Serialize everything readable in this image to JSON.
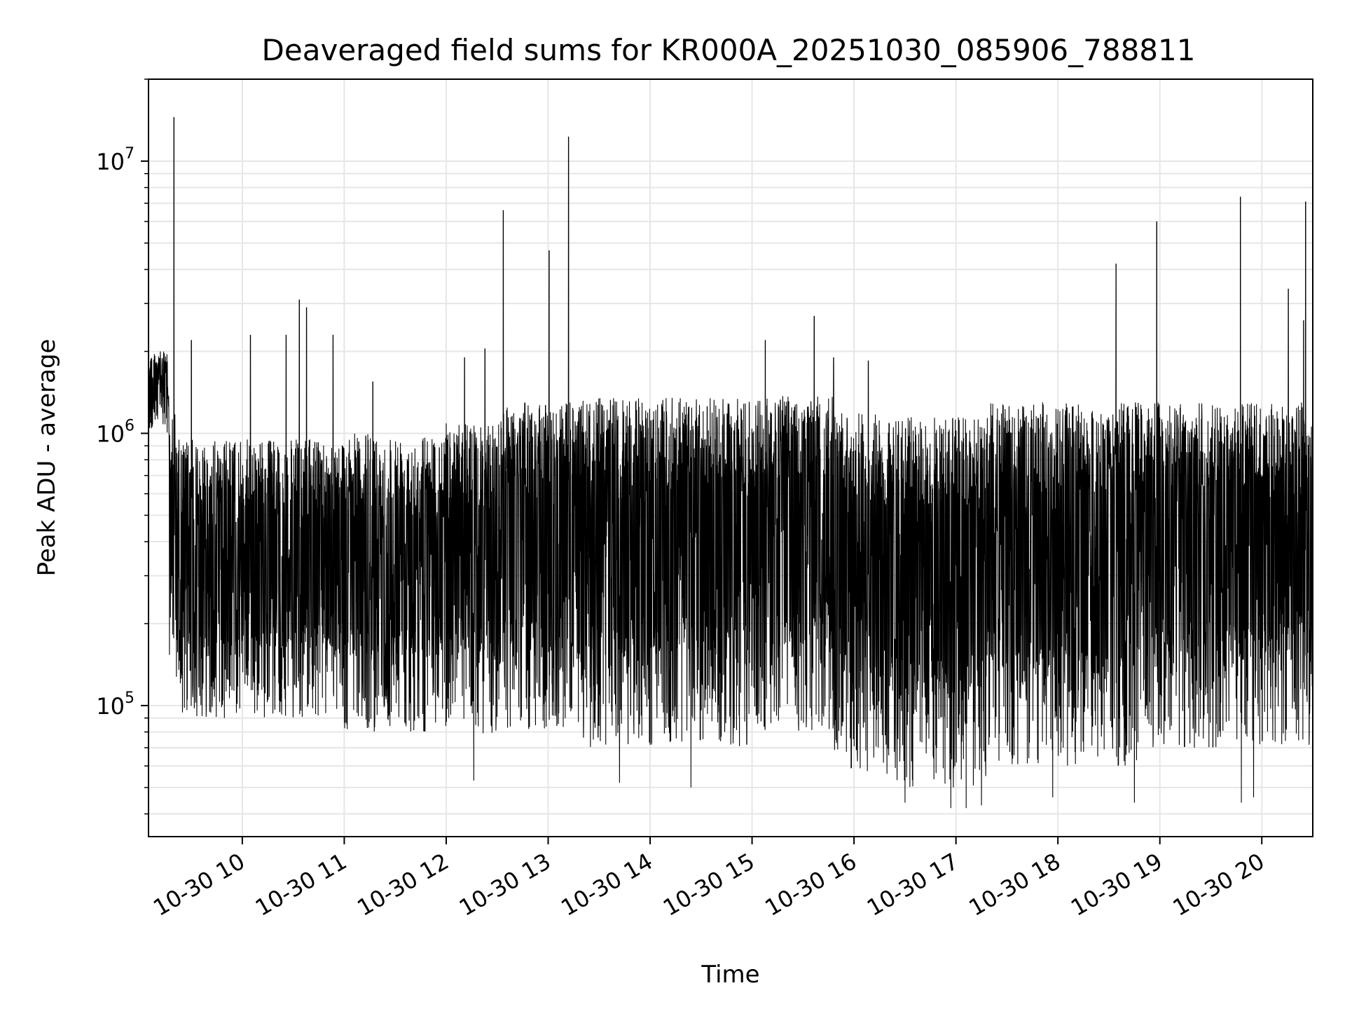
{
  "chart_data": {
    "type": "line",
    "title": "Deaveraged field sums for KR000A_20251030_085906_788811",
    "xlabel": "Time",
    "ylabel": "Peak ADU - average",
    "yscale": "log",
    "ylim": [
      33000,
      20000000
    ],
    "xlim_hours": [
      9.08,
      20.5
    ],
    "grid": true,
    "line_color": "#000000",
    "grid_color": "#e6e6e6",
    "x_ticks": [
      {
        "hour": 10,
        "label": "10-30 10"
      },
      {
        "hour": 11,
        "label": "10-30 11"
      },
      {
        "hour": 12,
        "label": "10-30 12"
      },
      {
        "hour": 13,
        "label": "10-30 13"
      },
      {
        "hour": 14,
        "label": "10-30 14"
      },
      {
        "hour": 15,
        "label": "10-30 15"
      },
      {
        "hour": 16,
        "label": "10-30 16"
      },
      {
        "hour": 17,
        "label": "10-30 17"
      },
      {
        "hour": 18,
        "label": "10-30 18"
      },
      {
        "hour": 19,
        "label": "10-30 19"
      },
      {
        "hour": 20,
        "label": "10-30 20"
      }
    ],
    "y_ticks": [
      {
        "value": 100000,
        "base": "10",
        "exp": "5"
      },
      {
        "value": 1000000,
        "base": "10",
        "exp": "6"
      },
      {
        "value": 10000000,
        "base": "10",
        "exp": "7"
      }
    ],
    "series": [
      {
        "name": "Peak ADU - average",
        "sample_count": 6000,
        "segments": [
          {
            "start": 9.08,
            "end": 9.28,
            "high": 2000000,
            "low": 1000000
          },
          {
            "start": 9.28,
            "end": 9.35,
            "high": 1200000,
            "low": 150000
          },
          {
            "start": 9.35,
            "end": 11.0,
            "high": 950000,
            "low": 90000
          },
          {
            "start": 11.0,
            "end": 12.0,
            "high": 1000000,
            "low": 80000
          },
          {
            "start": 12.0,
            "end": 12.5,
            "high": 1100000,
            "low": 75000
          },
          {
            "start": 12.5,
            "end": 13.3,
            "high": 1300000,
            "low": 80000
          },
          {
            "start": 13.3,
            "end": 15.0,
            "high": 1350000,
            "low": 70000
          },
          {
            "start": 15.0,
            "end": 15.8,
            "high": 1400000,
            "low": 80000
          },
          {
            "start": 15.8,
            "end": 16.3,
            "high": 1200000,
            "low": 55000
          },
          {
            "start": 16.3,
            "end": 17.3,
            "high": 1150000,
            "low": 50000
          },
          {
            "start": 17.3,
            "end": 18.8,
            "high": 1300000,
            "low": 60000
          },
          {
            "start": 18.8,
            "end": 20.5,
            "high": 1300000,
            "low": 70000
          }
        ],
        "spikes": [
          {
            "hour": 9.33,
            "value": 14500000
          },
          {
            "hour": 9.5,
            "value": 2200000
          },
          {
            "hour": 10.08,
            "value": 2300000
          },
          {
            "hour": 10.43,
            "value": 2300000
          },
          {
            "hour": 10.56,
            "value": 3100000
          },
          {
            "hour": 10.63,
            "value": 2900000
          },
          {
            "hour": 10.89,
            "value": 2300000
          },
          {
            "hour": 11.28,
            "value": 1550000
          },
          {
            "hour": 12.18,
            "value": 1900000
          },
          {
            "hour": 12.38,
            "value": 2050000
          },
          {
            "hour": 12.56,
            "value": 6600000
          },
          {
            "hour": 13.01,
            "value": 4700000
          },
          {
            "hour": 13.2,
            "value": 12300000
          },
          {
            "hour": 15.13,
            "value": 2200000
          },
          {
            "hour": 15.61,
            "value": 2700000
          },
          {
            "hour": 15.8,
            "value": 1900000
          },
          {
            "hour": 16.14,
            "value": 1850000
          },
          {
            "hour": 18.57,
            "value": 4200000
          },
          {
            "hour": 18.97,
            "value": 6000000
          },
          {
            "hour": 19.79,
            "value": 7400000
          },
          {
            "hour": 20.26,
            "value": 3400000
          },
          {
            "hour": 20.41,
            "value": 2600000
          },
          {
            "hour": 20.43,
            "value": 7100000
          }
        ],
        "dips": [
          {
            "hour": 9.5,
            "value": 72000
          },
          {
            "hour": 12.27,
            "value": 53000
          },
          {
            "hour": 13.7,
            "value": 52000
          },
          {
            "hour": 14.4,
            "value": 50000
          },
          {
            "hour": 16.5,
            "value": 44000
          },
          {
            "hour": 16.95,
            "value": 42000
          },
          {
            "hour": 17.1,
            "value": 42000
          },
          {
            "hour": 17.25,
            "value": 43000
          },
          {
            "hour": 17.95,
            "value": 46000
          },
          {
            "hour": 18.75,
            "value": 44000
          },
          {
            "hour": 19.8,
            "value": 44000
          },
          {
            "hour": 19.92,
            "value": 46000
          }
        ]
      }
    ]
  }
}
